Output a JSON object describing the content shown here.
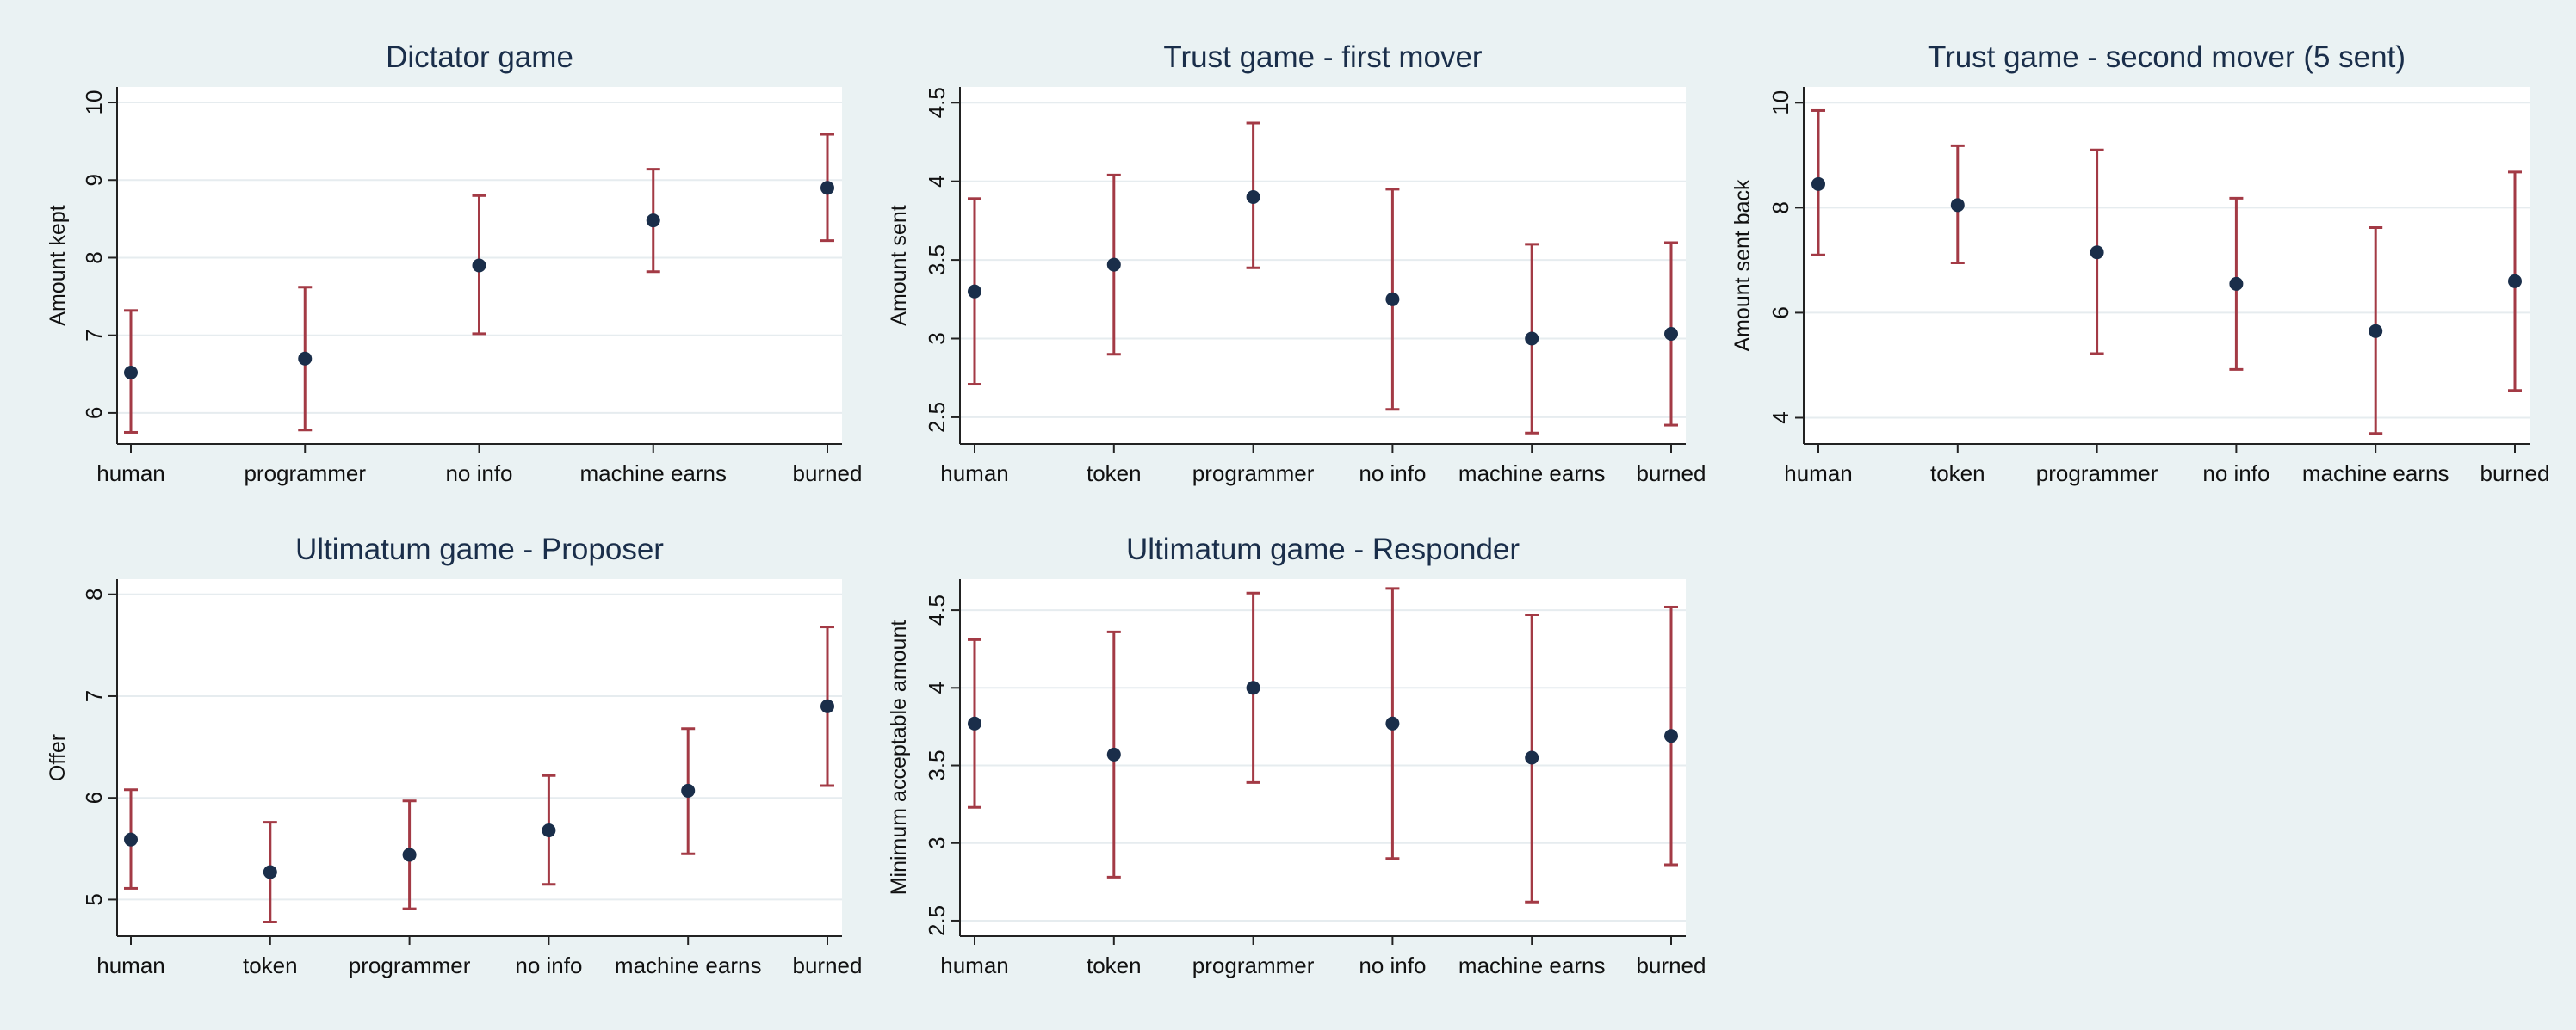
{
  "colors": {
    "background": "#eaf2f3",
    "plot_background": "#ffffff",
    "grid": "#e6ecef",
    "marker": "#1a2e4a",
    "error_bar": "#a33a45"
  },
  "chart_data": [
    {
      "type": "scatter",
      "title": "Dictator game",
      "ylabel": "Amount kept",
      "categories": [
        "human",
        "programmer",
        "no info",
        "machine earns",
        "burned"
      ],
      "values": [
        6.52,
        6.7,
        7.9,
        8.48,
        8.9
      ],
      "ci_low": [
        5.75,
        5.78,
        7.02,
        7.82,
        8.22
      ],
      "ci_high": [
        7.32,
        7.62,
        8.8,
        9.14,
        9.59
      ],
      "ylim": [
        5.6,
        10.2
      ],
      "yticks": [
        6,
        7,
        8,
        9,
        10
      ],
      "grid": true
    },
    {
      "type": "scatter",
      "title": "Trust game - first mover",
      "ylabel": "Amount sent",
      "categories": [
        "human",
        "token",
        "programmer",
        "no info",
        "machine earns",
        "burned"
      ],
      "values": [
        3.3,
        3.47,
        3.9,
        3.25,
        3.0,
        3.03
      ],
      "ci_low": [
        2.71,
        2.9,
        3.45,
        2.55,
        2.4,
        2.45
      ],
      "ci_high": [
        3.89,
        4.04,
        4.37,
        3.95,
        3.6,
        3.61
      ],
      "ylim": [
        2.33,
        4.6
      ],
      "yticks": [
        2.5,
        3,
        3.5,
        4,
        4.5
      ],
      "grid": true
    },
    {
      "type": "scatter",
      "title": "Trust game - second mover (5 sent)",
      "ylabel": "Amount sent back",
      "categories": [
        "human",
        "token",
        "programmer",
        "no info",
        "machine earns",
        "burned"
      ],
      "values": [
        8.45,
        8.05,
        7.15,
        6.55,
        5.65,
        6.6
      ],
      "ci_low": [
        7.1,
        6.95,
        5.22,
        4.92,
        3.7,
        4.52
      ],
      "ci_high": [
        9.85,
        9.18,
        9.1,
        8.18,
        7.62,
        8.68
      ],
      "ylim": [
        3.5,
        10.3
      ],
      "yticks": [
        4,
        6,
        8,
        10
      ],
      "grid": true
    },
    {
      "type": "scatter",
      "title": "Ultimatum game - Proposer",
      "ylabel": "Offer",
      "categories": [
        "human",
        "token",
        "programmer",
        "no info",
        "machine earns",
        "burned"
      ],
      "values": [
        5.59,
        5.27,
        5.44,
        5.68,
        6.07,
        6.9
      ],
      "ci_low": [
        5.11,
        4.78,
        4.91,
        5.15,
        5.45,
        6.12
      ],
      "ci_high": [
        6.08,
        5.76,
        5.97,
        6.22,
        6.68,
        7.68
      ],
      "ylim": [
        4.64,
        8.15
      ],
      "yticks": [
        5,
        6,
        7,
        8
      ],
      "grid": true
    },
    {
      "type": "scatter",
      "title": "Ultimatum game - Responder",
      "ylabel": "Minimum acceptable amount",
      "categories": [
        "human",
        "token",
        "programmer",
        "no info",
        "machine earns",
        "burned"
      ],
      "values": [
        3.77,
        3.57,
        4.0,
        3.77,
        3.55,
        3.69
      ],
      "ci_low": [
        3.23,
        2.78,
        3.39,
        2.9,
        2.62,
        2.86
      ],
      "ci_high": [
        4.31,
        4.36,
        4.61,
        4.64,
        4.47,
        4.52
      ],
      "ylim": [
        2.4,
        4.7
      ],
      "yticks": [
        2.5,
        3,
        3.5,
        4,
        4.5
      ],
      "grid": true
    }
  ]
}
